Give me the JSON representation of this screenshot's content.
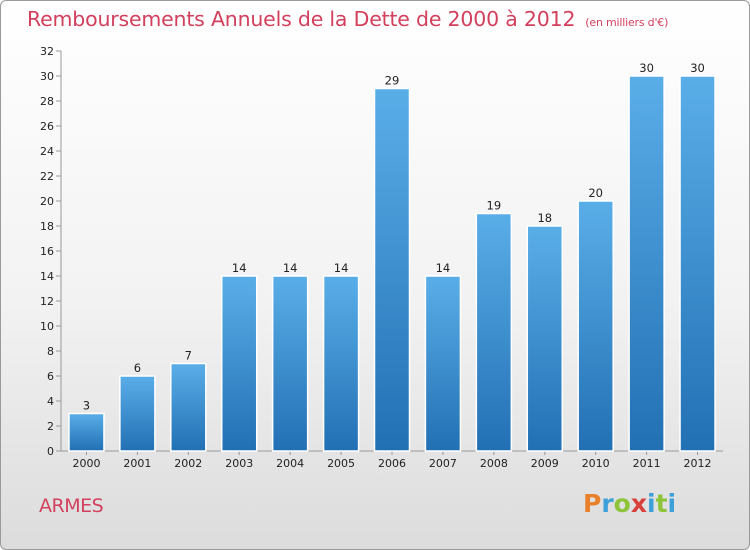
{
  "title": "Remboursements Annuels de la Dette de 2000 à 2012",
  "subtitle": "(en milliers d'€)",
  "commune": "ARMES",
  "logo": {
    "letters": [
      "P",
      "r",
      "o",
      "x",
      "i",
      "t",
      "i"
    ],
    "colors": [
      "#e8812a",
      "#3ea0d8",
      "#8ec43a",
      "#d8403a",
      "#3ea0d8",
      "#8ec43a",
      "#3ea0d8"
    ]
  },
  "colors": {
    "bar_light": "#5aaee8",
    "bar_dark": "#2270b4",
    "title": "#d2405d"
  },
  "chart_data": {
    "type": "bar",
    "title": "Remboursements Annuels de la Dette de 2000 à 2012",
    "subtitle": "(en milliers d'€)",
    "categories": [
      "2000",
      "2001",
      "2002",
      "2003",
      "2004",
      "2005",
      "2006",
      "2007",
      "2008",
      "2009",
      "2010",
      "2011",
      "2012"
    ],
    "values": [
      3,
      6,
      7,
      14,
      14,
      14,
      29,
      14,
      19,
      18,
      20,
      30,
      30
    ],
    "ylim": [
      0,
      32
    ],
    "yticks": [
      0,
      2,
      4,
      6,
      8,
      10,
      12,
      14,
      16,
      18,
      20,
      22,
      24,
      26,
      28,
      30,
      32
    ],
    "grid": false,
    "legend": "none"
  }
}
